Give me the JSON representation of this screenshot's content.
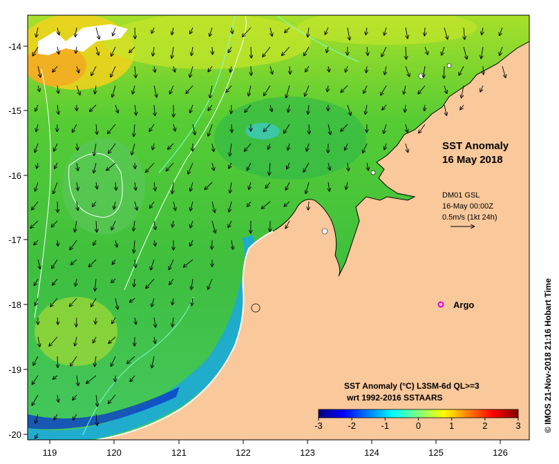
{
  "map": {
    "title_line1": "SST Anomaly",
    "title_line2": "16 May 2018",
    "credit": "© IMOS 21-Nov-2018 21:16 Hobart Time",
    "land_color": "#f9c89b",
    "x_ticks": [
      "119",
      "120",
      "121",
      "122",
      "123",
      "124",
      "125",
      "126"
    ],
    "y_ticks": [
      "-14",
      "-15",
      "-16",
      "-17",
      "-18",
      "-19",
      "-20"
    ]
  },
  "current_legend": {
    "line1": "DM01 GSL",
    "line2": "16-May 00:00Z",
    "line3": "0.5m/s (1kt 24h)"
  },
  "argo": {
    "label": "Argo",
    "color": "#e000e0"
  },
  "colorbar": {
    "title_line1": "SST Anomaly (°C) L3SM-6d QL>=3",
    "title_line2": "wrt 1992-2016 SSTAARS",
    "ticks": [
      "-3",
      "-2",
      "-1",
      "0",
      "1",
      "2",
      "3"
    ],
    "range": [
      -3,
      3
    ],
    "colors": [
      "#00007f",
      "#0000ff",
      "#007fff",
      "#00ffff",
      "#7fff7f",
      "#ffff00",
      "#ff7f00",
      "#ff0000",
      "#7f0000"
    ]
  }
}
